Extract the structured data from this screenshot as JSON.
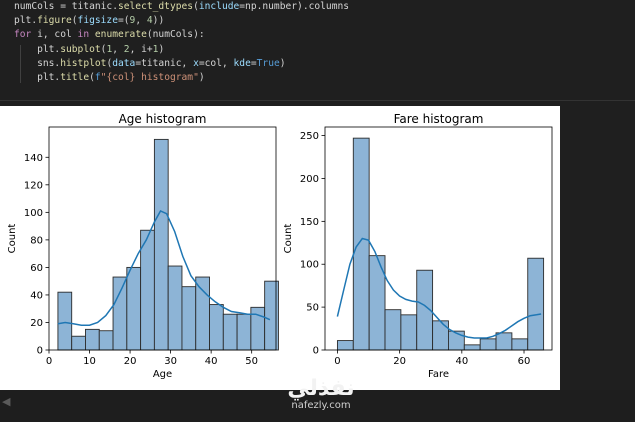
{
  "code": {
    "lines": [
      [
        [
          "ln",
          "numCols = titanic."
        ],
        [
          "fn",
          "select_dtypes"
        ],
        [
          "ln",
          "("
        ],
        [
          "vr",
          "include"
        ],
        [
          "ln",
          "=np.number).columns"
        ]
      ],
      [
        [
          "ln",
          "plt."
        ],
        [
          "fn",
          "figure"
        ],
        [
          "ln",
          "("
        ],
        [
          "vr",
          "figsize"
        ],
        [
          "ln",
          "=("
        ],
        [
          "nm",
          "9"
        ],
        [
          "ln",
          ", "
        ],
        [
          "nm",
          "4"
        ],
        [
          "ln",
          "))"
        ]
      ],
      [
        [
          "kw",
          "for"
        ],
        [
          "ln",
          " i, col "
        ],
        [
          "kw",
          "in"
        ],
        [
          "ln",
          " "
        ],
        [
          "fn",
          "enumerate"
        ],
        [
          "ln",
          "(numCols):"
        ]
      ],
      [
        [
          "ln",
          "    plt."
        ],
        [
          "fn",
          "subplot"
        ],
        [
          "ln",
          "("
        ],
        [
          "nm",
          "1"
        ],
        [
          "ln",
          ", "
        ],
        [
          "nm",
          "2"
        ],
        [
          "ln",
          ", i+"
        ],
        [
          "nm",
          "1"
        ],
        [
          "ln",
          ")"
        ]
      ],
      [
        [
          "ln",
          "    sns."
        ],
        [
          "fn",
          "histplot"
        ],
        [
          "ln",
          "("
        ],
        [
          "vr",
          "data"
        ],
        [
          "ln",
          "=titanic, "
        ],
        [
          "vr",
          "x"
        ],
        [
          "ln",
          "=col, "
        ],
        [
          "vr",
          "kde"
        ],
        [
          "ln",
          "="
        ],
        [
          "bi",
          "True"
        ],
        [
          "ln",
          ")"
        ]
      ],
      [
        [
          "ln",
          "    plt."
        ],
        [
          "fn",
          "title"
        ],
        [
          "ln",
          "("
        ],
        [
          "bi",
          "f"
        ],
        [
          "st",
          "\"{col} histogram\""
        ],
        [
          "ln",
          ")"
        ]
      ]
    ]
  },
  "colors": {
    "bar_fill": "#8db4d6",
    "bar_edge": "#2b2b2b",
    "kde_line": "#1f77b4"
  },
  "chart_data": [
    {
      "type": "bar",
      "title": "Age histogram",
      "xlabel": "Age",
      "ylabel": "Count",
      "xlim": [
        0,
        56
      ],
      "ylim": [
        0,
        162
      ],
      "xticks": [
        0,
        10,
        20,
        30,
        40,
        50
      ],
      "yticks": [
        0,
        20,
        40,
        60,
        80,
        100,
        120,
        140
      ],
      "bin_start": 2.2,
      "bin_width": 3.4,
      "values": [
        42,
        10,
        15,
        14,
        53,
        60,
        87,
        153,
        61,
        46,
        53,
        33,
        26,
        26,
        31,
        50
      ],
      "kde": [
        [
          2.2,
          19
        ],
        [
          4,
          20
        ],
        [
          6,
          19
        ],
        [
          8,
          18
        ],
        [
          10,
          18
        ],
        [
          12,
          20
        ],
        [
          14,
          25
        ],
        [
          16,
          33
        ],
        [
          18,
          45
        ],
        [
          20,
          58
        ],
        [
          22,
          70
        ],
        [
          24,
          80
        ],
        [
          26,
          93
        ],
        [
          27.5,
          101
        ],
        [
          29,
          99
        ],
        [
          31,
          86
        ],
        [
          33,
          68
        ],
        [
          35,
          54
        ],
        [
          37,
          46
        ],
        [
          39,
          40
        ],
        [
          41,
          35
        ],
        [
          43,
          31
        ],
        [
          45,
          28
        ],
        [
          47,
          27
        ],
        [
          49,
          26
        ],
        [
          51,
          26
        ],
        [
          53,
          24
        ],
        [
          54.5,
          22
        ]
      ]
    },
    {
      "type": "bar",
      "title": "Fare histogram",
      "xlabel": "Fare",
      "ylabel": "Count",
      "xlim": [
        -4,
        69
      ],
      "ylim": [
        0,
        260
      ],
      "xticks": [
        0,
        20,
        40,
        60
      ],
      "yticks": [
        0,
        50,
        100,
        150,
        200,
        250
      ],
      "bin_start": 0,
      "bin_width": 5.1,
      "values": [
        11,
        247,
        110,
        47,
        41,
        93,
        34,
        22,
        6,
        13,
        20,
        13,
        107
      ],
      "kde": [
        [
          0,
          39
        ],
        [
          2,
          70
        ],
        [
          4,
          100
        ],
        [
          6,
          120
        ],
        [
          8,
          130
        ],
        [
          10,
          128
        ],
        [
          12,
          115
        ],
        [
          14,
          97
        ],
        [
          16,
          81
        ],
        [
          18,
          70
        ],
        [
          20,
          63
        ],
        [
          22,
          59
        ],
        [
          24,
          57
        ],
        [
          26,
          56
        ],
        [
          28,
          52
        ],
        [
          30,
          46
        ],
        [
          32,
          38
        ],
        [
          34,
          30
        ],
        [
          36,
          24
        ],
        [
          38,
          20
        ],
        [
          40,
          17
        ],
        [
          42,
          15
        ],
        [
          44,
          14
        ],
        [
          46,
          14
        ],
        [
          48,
          14
        ],
        [
          50,
          16
        ],
        [
          52,
          19
        ],
        [
          54,
          23
        ],
        [
          56,
          28
        ],
        [
          58,
          33
        ],
        [
          60,
          37
        ],
        [
          62,
          40
        ],
        [
          64,
          41
        ],
        [
          65.5,
          42
        ]
      ]
    }
  ],
  "watermark": {
    "arabic": "نفذلي",
    "site": "nafezly.com"
  }
}
